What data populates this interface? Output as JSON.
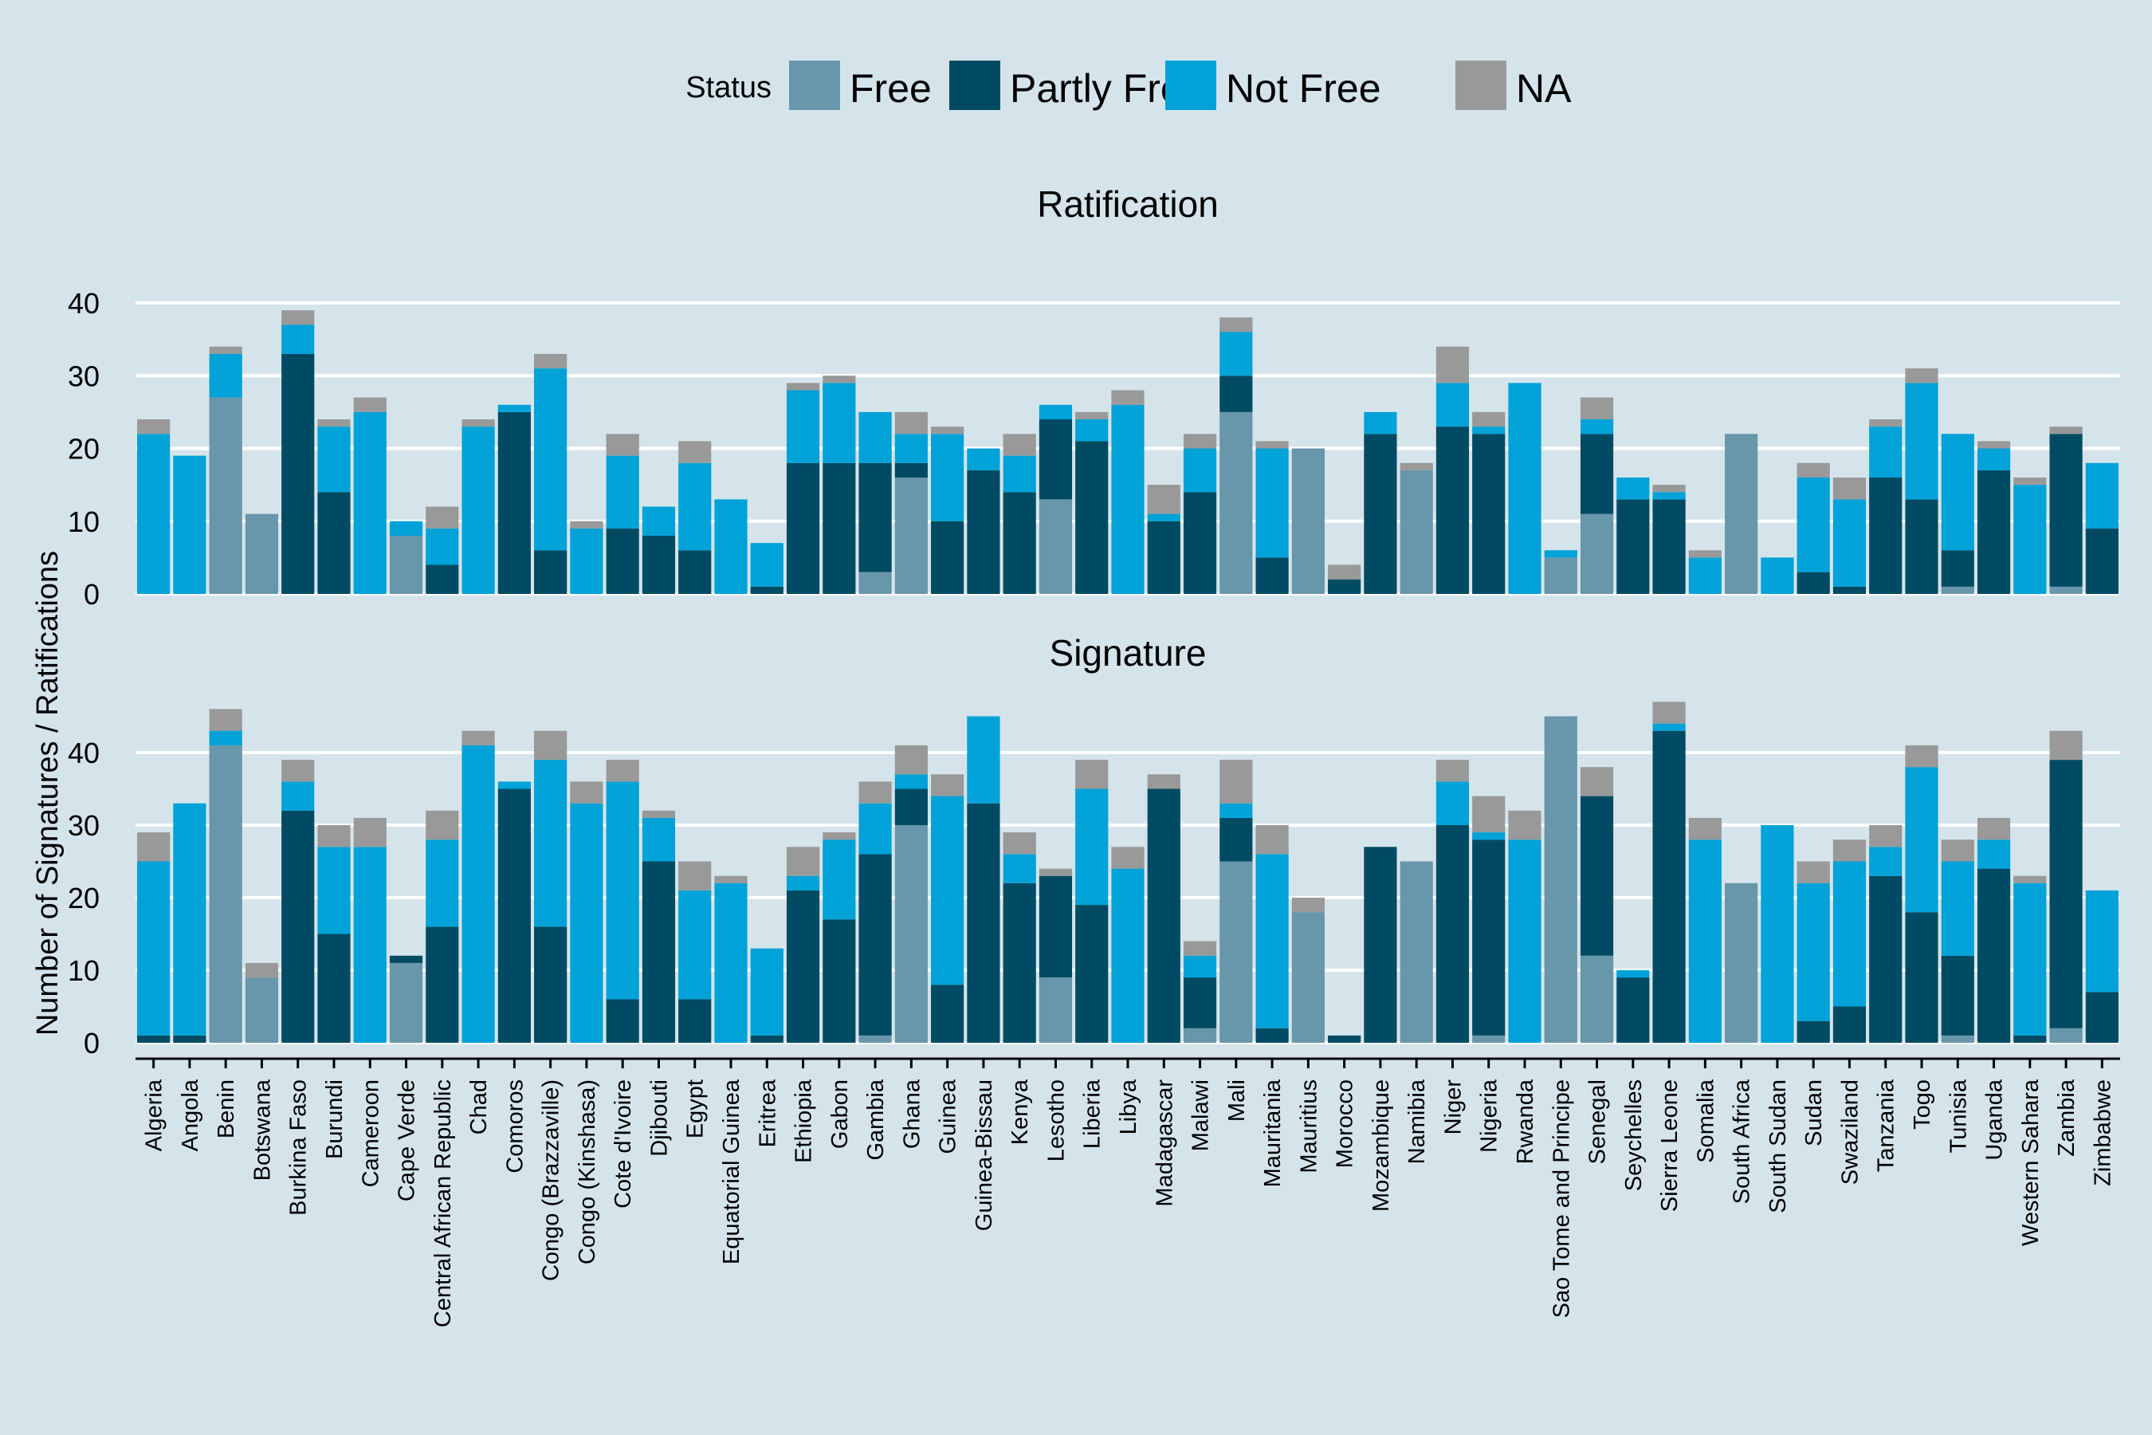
{
  "chart_data": {
    "type": "bar",
    "stacked": true,
    "ylabel": "Number of Signatures / Ratifications",
    "xlabel": "",
    "legend": {
      "title": "Status",
      "position": "top",
      "entries": [
        "Free",
        "Partly Free",
        "Not Free",
        "NA"
      ]
    },
    "colors": {
      "Free": "#6896aa",
      "Partly Free": "#004b63",
      "Not Free": "#00a2d8",
      "NA": "#999999"
    },
    "categories": [
      "Algeria",
      "Angola",
      "Benin",
      "Botswana",
      "Burkina Faso",
      "Burundi",
      "Cameroon",
      "Cape Verde",
      "Central African Republic",
      "Chad",
      "Comoros",
      "Congo (Brazzaville)",
      "Congo (Kinshasa)",
      "Cote d'Ivoire",
      "Djibouti",
      "Egypt",
      "Equatorial Guinea",
      "Eritrea",
      "Ethiopia",
      "Gabon",
      "Gambia",
      "Ghana",
      "Guinea",
      "Guinea-Bissau",
      "Kenya",
      "Lesotho",
      "Liberia",
      "Libya",
      "Madagascar",
      "Malawi",
      "Mali",
      "Mauritania",
      "Mauritius",
      "Morocco",
      "Mozambique",
      "Namibia",
      "Niger",
      "Nigeria",
      "Rwanda",
      "Sao Tome and Principe",
      "Senegal",
      "Seychelles",
      "Sierra Leone",
      "Somalia",
      "South Africa",
      "South Sudan",
      "Sudan",
      "Swaziland",
      "Tanzania",
      "Togo",
      "Tunisia",
      "Uganda",
      "Western Sahara",
      "Zambia",
      "Zimbabwe"
    ],
    "panels": [
      {
        "title": "Ratification",
        "ylim": [
          0,
          42
        ],
        "yticks": [
          0,
          10,
          20,
          30,
          40
        ],
        "series": [
          {
            "name": "Free",
            "values": [
              0,
              0,
              27,
              11,
              0,
              0,
              0,
              8,
              0,
              0,
              0,
              0,
              0,
              0,
              0,
              0,
              0,
              0,
              0,
              0,
              3,
              16,
              0,
              0,
              0,
              13,
              0,
              0,
              0,
              0,
              25,
              0,
              20,
              0,
              0,
              17,
              0,
              0,
              0,
              5,
              11,
              0,
              0,
              0,
              22,
              0,
              0,
              0,
              0,
              0,
              1,
              0,
              0,
              1,
              0
            ]
          },
          {
            "name": "Partly Free",
            "values": [
              0,
              0,
              0,
              0,
              33,
              14,
              0,
              0,
              4,
              0,
              25,
              6,
              0,
              9,
              8,
              6,
              0,
              1,
              18,
              18,
              15,
              2,
              10,
              17,
              14,
              11,
              21,
              0,
              10,
              14,
              5,
              5,
              0,
              2,
              22,
              0,
              23,
              22,
              0,
              0,
              11,
              13,
              13,
              0,
              0,
              0,
              3,
              1,
              16,
              13,
              5,
              17,
              0,
              21,
              9
            ]
          },
          {
            "name": "Not Free",
            "values": [
              22,
              19,
              6,
              0,
              4,
              9,
              25,
              2,
              5,
              23,
              1,
              25,
              9,
              10,
              4,
              12,
              13,
              6,
              10,
              11,
              7,
              4,
              12,
              3,
              5,
              2,
              3,
              26,
              1,
              6,
              6,
              15,
              0,
              0,
              3,
              0,
              6,
              1,
              29,
              1,
              2,
              3,
              1,
              5,
              0,
              5,
              13,
              12,
              7,
              16,
              16,
              3,
              15,
              0,
              9
            ]
          },
          {
            "name": "NA",
            "values": [
              2,
              0,
              1,
              0,
              2,
              1,
              2,
              0,
              3,
              1,
              0,
              2,
              1,
              3,
              0,
              3,
              0,
              0,
              1,
              1,
              0,
              3,
              1,
              0,
              3,
              0,
              1,
              2,
              4,
              2,
              2,
              1,
              0,
              2,
              0,
              1,
              5,
              2,
              0,
              0,
              3,
              0,
              1,
              1,
              0,
              0,
              2,
              3,
              1,
              2,
              0,
              1,
              1,
              1,
              0
            ]
          }
        ]
      },
      {
        "title": "Signature",
        "ylim": [
          0,
          49
        ],
        "yticks": [
          0,
          10,
          20,
          30,
          40
        ],
        "series": [
          {
            "name": "Free",
            "values": [
              0,
              0,
              41,
              9,
              0,
              0,
              0,
              11,
              0,
              0,
              0,
              0,
              0,
              0,
              0,
              0,
              0,
              0,
              0,
              0,
              1,
              30,
              0,
              0,
              0,
              9,
              0,
              0,
              0,
              2,
              25,
              0,
              18,
              0,
              0,
              25,
              0,
              1,
              0,
              45,
              12,
              0,
              0,
              0,
              22,
              0,
              0,
              0,
              0,
              0,
              1,
              0,
              0,
              2,
              0
            ]
          },
          {
            "name": "Partly Free",
            "values": [
              1,
              1,
              0,
              0,
              32,
              15,
              0,
              1,
              16,
              0,
              35,
              16,
              0,
              6,
              25,
              6,
              0,
              1,
              21,
              17,
              25,
              5,
              8,
              33,
              22,
              14,
              19,
              0,
              35,
              7,
              6,
              2,
              0,
              1,
              27,
              0,
              30,
              27,
              0,
              0,
              22,
              9,
              43,
              0,
              0,
              0,
              3,
              5,
              23,
              18,
              11,
              24,
              1,
              37,
              7
            ]
          },
          {
            "name": "Not Free",
            "values": [
              24,
              32,
              2,
              0,
              4,
              12,
              27,
              0,
              12,
              41,
              1,
              23,
              33,
              30,
              6,
              15,
              22,
              12,
              2,
              11,
              7,
              2,
              26,
              12,
              4,
              0,
              16,
              24,
              0,
              3,
              2,
              24,
              0,
              0,
              0,
              0,
              6,
              1,
              28,
              0,
              0,
              1,
              1,
              28,
              0,
              30,
              19,
              20,
              4,
              20,
              13,
              4,
              21,
              0,
              14
            ]
          },
          {
            "name": "NA",
            "values": [
              4,
              0,
              3,
              2,
              3,
              3,
              4,
              0,
              4,
              2,
              0,
              4,
              3,
              3,
              1,
              4,
              1,
              0,
              4,
              1,
              3,
              4,
              3,
              0,
              3,
              1,
              4,
              3,
              2,
              2,
              6,
              4,
              2,
              0,
              0,
              0,
              3,
              5,
              4,
              0,
              4,
              0,
              3,
              3,
              0,
              0,
              3,
              3,
              3,
              3,
              3,
              3,
              1,
              4,
              0
            ]
          }
        ]
      }
    ]
  }
}
